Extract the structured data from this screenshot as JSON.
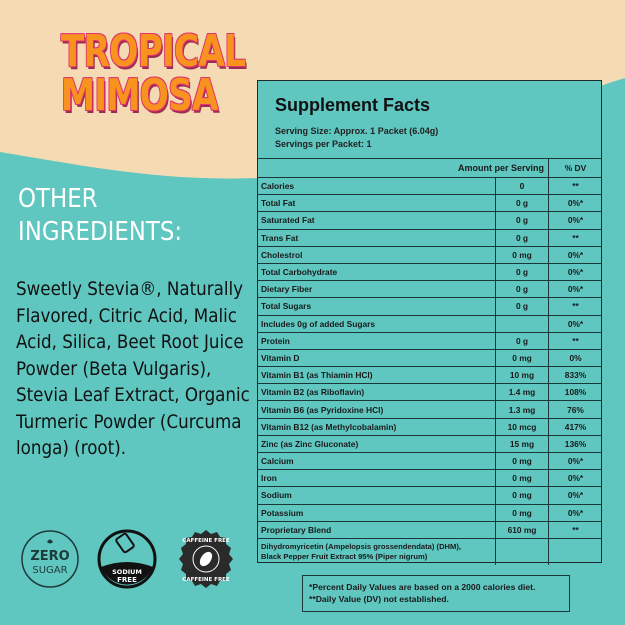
{
  "colors": {
    "beige": "#f5dbb4",
    "teal": "#5fc6c0",
    "title_orange": "#f7931e",
    "title_pink": "#e0336f"
  },
  "title": {
    "line1": "TROPICAL",
    "line2": "MIMOSA"
  },
  "other_ingredients": {
    "heading_line1": "OTHER",
    "heading_line2": "INGREDIENTS:",
    "text": "Sweetly Stevia®, Naturally Flavored, Citric Acid, Malic Acid, Silica, Beet Root Juice Powder (Beta Vulgaris), Stevia Leaf Extract, Organic Turmeric Powder (Curcuma longa) (root)."
  },
  "facts": {
    "title": "Supplement Facts",
    "serving_size": "Serving Size: Approx. 1 Packet (6.04g)",
    "servings": "Servings per Packet: 1",
    "header_amount": "Amount per Serving",
    "header_dv": "% DV",
    "rows": [
      {
        "name": "Calories",
        "amount": "0",
        "dv": "**"
      },
      {
        "name": "Total Fat",
        "amount": "0 g",
        "dv": "0%*"
      },
      {
        "name": "Saturated Fat",
        "amount": "0 g",
        "dv": "0%*"
      },
      {
        "name": "Trans Fat",
        "amount": "0 g",
        "dv": "**"
      },
      {
        "name": "Cholestrol",
        "amount": "0 mg",
        "dv": "0%*"
      },
      {
        "name": "Total Carbohydrate",
        "amount": "0 g",
        "dv": "0%*"
      },
      {
        "name": "Dietary Fiber",
        "amount": "0 g",
        "dv": "0%*"
      },
      {
        "name": "Total Sugars",
        "amount": "0 g",
        "dv": "**"
      },
      {
        "name": "Includes 0g of added Sugars",
        "amount": "",
        "dv": "0%*"
      },
      {
        "name": "Protein",
        "amount": "0 g",
        "dv": "**"
      },
      {
        "name": "Vitamin D",
        "amount": "0 mg",
        "dv": "0%"
      },
      {
        "name": "Vitamin B1 (as Thiamin HCl)",
        "amount": "10 mg",
        "dv": "833%"
      },
      {
        "name": "Vitamin B2 (as Riboflavin)",
        "amount": "1.4 mg",
        "dv": "108%"
      },
      {
        "name": "Vitamin B6 (as Pyridoxine HCl)",
        "amount": "1.3 mg",
        "dv": "76%"
      },
      {
        "name": "Vitamin B12 (as Methylcobalamin)",
        "amount": "10 mcg",
        "dv": "417%"
      },
      {
        "name": "Zinc (as Zinc Gluconate)",
        "amount": "15 mg",
        "dv": "136%"
      },
      {
        "name": "Calcium",
        "amount": "0 mg",
        "dv": "0%*"
      },
      {
        "name": "Iron",
        "amount": "0 mg",
        "dv": "0%*"
      },
      {
        "name": "Sodium",
        "amount": "0 mg",
        "dv": "0%*"
      },
      {
        "name": "Potassium",
        "amount": "0 mg",
        "dv": "0%*"
      },
      {
        "name": "Proprietary Blend",
        "amount": "610 mg",
        "dv": "**"
      }
    ],
    "blend_line1": "Dihydromyricetin (Ampelopsis grossendendata) (DHM),",
    "blend_line2": "Black Pepper Fruit Extract 95% (Piper nigrum)",
    "footnote1": "*Percent Daily Values are based on a 2000 calories diet.",
    "footnote2": "**Daily Value (DV) not established."
  },
  "badges": {
    "zero_sugar": {
      "line1": "ZERO",
      "line2": "SUGAR"
    },
    "sodium_free": {
      "line1": "SODIUM",
      "line2": "FREE"
    },
    "caffeine_free": {
      "text": "CAFFEINE FREE"
    }
  }
}
